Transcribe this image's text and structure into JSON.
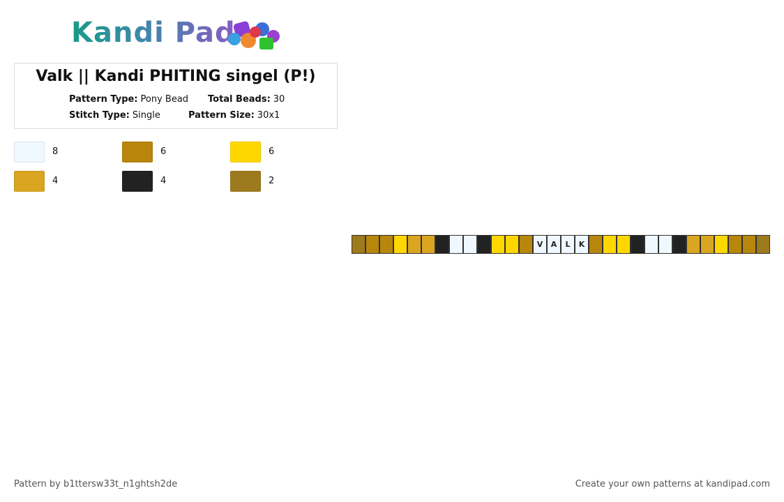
{
  "logo": {
    "text": "Kandi Pad"
  },
  "header": {
    "title": "Valk || Kandi PHITING singel (P!)",
    "fields": [
      {
        "label": "Pattern Type:",
        "value": "Pony Bead"
      },
      {
        "label": "Total Beads:",
        "value": 30
      },
      {
        "label": "Stitch Type:",
        "value": "Single"
      },
      {
        "label": "Pattern Size:",
        "value": "30x1"
      }
    ]
  },
  "palette": [
    {
      "color": "#f0f8ff",
      "count": 8
    },
    {
      "color": "#b8860b",
      "count": 6
    },
    {
      "color": "#ffd700",
      "count": 6
    },
    {
      "color": "#daa520",
      "count": 4
    },
    {
      "color": "#222222",
      "count": 4
    },
    {
      "color": "#9e7a1e",
      "count": 2
    }
  ],
  "beads": [
    {
      "color": "#9e7a1e"
    },
    {
      "color": "#b8860b"
    },
    {
      "color": "#b8860b"
    },
    {
      "color": "#ffd700"
    },
    {
      "color": "#daa520"
    },
    {
      "color": "#daa520"
    },
    {
      "color": "#222222"
    },
    {
      "color": "#f0f8ff"
    },
    {
      "color": "#f0f8ff"
    },
    {
      "color": "#222222"
    },
    {
      "color": "#ffd700"
    },
    {
      "color": "#ffd700"
    },
    {
      "color": "#b8860b"
    },
    {
      "color": "#f0f8ff",
      "label": "V"
    },
    {
      "color": "#f0f8ff",
      "label": "A"
    },
    {
      "color": "#f0f8ff",
      "label": "L"
    },
    {
      "color": "#f0f8ff",
      "label": "K"
    },
    {
      "color": "#b8860b"
    },
    {
      "color": "#ffd700"
    },
    {
      "color": "#ffd700"
    },
    {
      "color": "#222222"
    },
    {
      "color": "#f0f8ff"
    },
    {
      "color": "#f0f8ff"
    },
    {
      "color": "#222222"
    },
    {
      "color": "#daa520"
    },
    {
      "color": "#daa520"
    },
    {
      "color": "#ffd700"
    },
    {
      "color": "#b8860b"
    },
    {
      "color": "#b8860b"
    },
    {
      "color": "#9e7a1e"
    }
  ],
  "footer": {
    "left": "Pattern by b1ttersw33t_n1ghtsh2de",
    "right": "Create your own patterns at kandipad.com"
  }
}
